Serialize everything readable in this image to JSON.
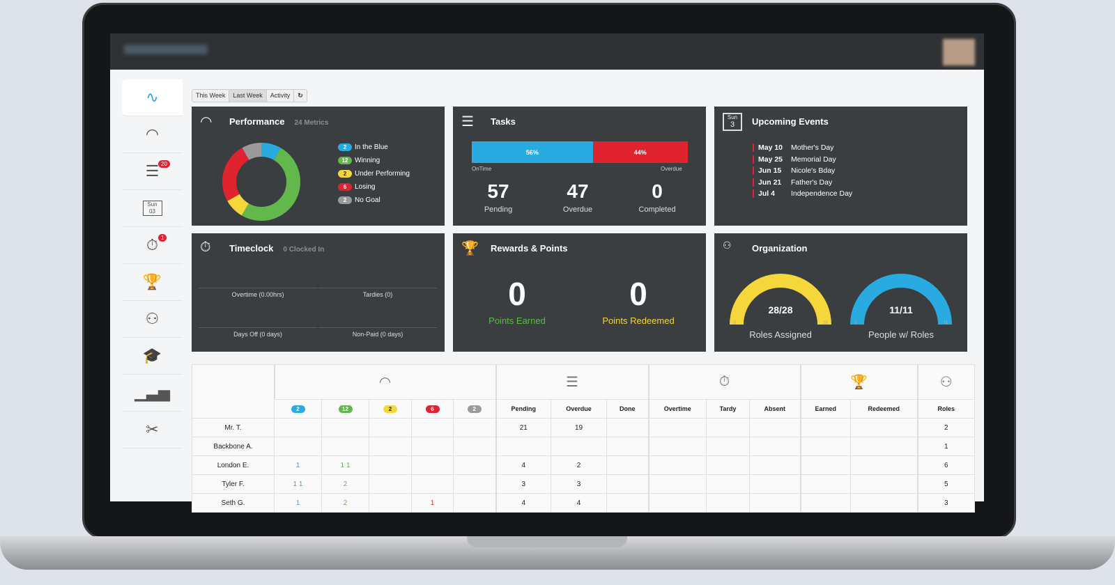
{
  "toolbar": {
    "tabs": [
      "This Week",
      "Last Week",
      "Activity"
    ],
    "active": "Last Week",
    "refresh_icon": "refresh-icon"
  },
  "sidebar": {
    "items": [
      {
        "icon": "activity-pulse-icon"
      },
      {
        "icon": "gauge-icon"
      },
      {
        "icon": "tasks-icon",
        "badge": "20"
      },
      {
        "icon": "calendar-icon",
        "label_top": "Sun",
        "label": "03"
      },
      {
        "icon": "timer-icon",
        "badge": "1"
      },
      {
        "icon": "trophy-icon"
      },
      {
        "icon": "org-chart-icon"
      },
      {
        "icon": "graduation-cap-icon"
      },
      {
        "icon": "bar-chart-icon"
      },
      {
        "icon": "tools-icon"
      }
    ]
  },
  "performance": {
    "title": "Performance",
    "subtitle": "24 Metrics",
    "chart_data": {
      "type": "pie",
      "donut": true,
      "series": [
        {
          "name": "In the Blue",
          "value": 2,
          "color": "#29abe2"
        },
        {
          "name": "Winning",
          "value": 12,
          "color": "#62b84b"
        },
        {
          "name": "Under Performing",
          "value": 2,
          "color": "#f5d63b"
        },
        {
          "name": "Losing",
          "value": 6,
          "color": "#e0242f"
        },
        {
          "name": "No Goal",
          "value": 2,
          "color": "#9a9a9a"
        }
      ]
    }
  },
  "tasks": {
    "title": "Tasks",
    "ontime_pct": 56,
    "overdue_pct": 44,
    "ontime_label": "56%",
    "overdue_label": "44%",
    "left_caption": "OnTime",
    "right_caption": "Overdue",
    "stats": [
      {
        "value": "57",
        "label": "Pending"
      },
      {
        "value": "47",
        "label": "Overdue"
      },
      {
        "value": "0",
        "label": "Completed"
      }
    ]
  },
  "events": {
    "title": "Upcoming Events",
    "icon_top": "Sun",
    "icon_day": "3",
    "items": [
      {
        "date": "May 10",
        "name": "Mother's Day"
      },
      {
        "date": "May 25",
        "name": "Memorial Day"
      },
      {
        "date": "Jun 15",
        "name": "Nicole's Bday"
      },
      {
        "date": "Jun 21",
        "name": "Father's Day"
      },
      {
        "date": "Jul 4",
        "name": "Independence Day"
      }
    ]
  },
  "timeclock": {
    "title": "Timeclock",
    "subtitle": "0 Clocked In",
    "cells": [
      "Overtime (0.00hrs)",
      "Tardies (0)",
      "Days Off (0 days)",
      "Non-Paid (0 days)"
    ]
  },
  "rewards": {
    "title": "Rewards & Points",
    "earned": "0",
    "earned_label": "Points Earned",
    "redeemed": "0",
    "redeemed_label": "Points Redeemed",
    "earned_color": "#62b84b",
    "redeemed_color": "#f5d63b"
  },
  "organization": {
    "title": "Organization",
    "gauges": [
      {
        "value": "28/28",
        "label": "Roles Assigned",
        "min": "0",
        "max": "28",
        "fill": 1.0,
        "color": "#f5d63b"
      },
      {
        "value": "11/11",
        "label": "People w/ Roles",
        "min": "0",
        "max": "11",
        "fill": 1.0,
        "color": "#29abe2"
      }
    ]
  },
  "table": {
    "perf_badges": [
      "2",
      "12",
      "2",
      "6",
      "2"
    ],
    "columns": [
      "Pending",
      "Overdue",
      "Done",
      "Overtime",
      "Tardy",
      "Absent",
      "Earned",
      "Redeemed",
      "Roles"
    ],
    "rows": [
      {
        "name": "Mr. T.",
        "perf": [
          "",
          "",
          "",
          "",
          ""
        ],
        "vals": [
          "21",
          "19",
          "",
          "",
          "",
          "",
          "",
          "",
          "2"
        ]
      },
      {
        "name": "Backbone A.",
        "perf": [
          "",
          "",
          "",
          "",
          ""
        ],
        "vals": [
          "",
          "",
          "",
          "",
          "",
          "",
          "",
          "",
          "1"
        ]
      },
      {
        "name": "London E.",
        "perf": [
          "1",
          "1 1",
          "",
          "",
          ""
        ],
        "vals": [
          "4",
          "2",
          "",
          "",
          "",
          "",
          "",
          "",
          "6"
        ]
      },
      {
        "name": "Tyler F.",
        "perf": [
          "1 1",
          "2",
          "",
          "",
          ""
        ],
        "vals": [
          "3",
          "3",
          "",
          "",
          "",
          "",
          "",
          "",
          "5"
        ]
      },
      {
        "name": "Seth G.",
        "perf": [
          "1",
          "2",
          "",
          "1",
          ""
        ],
        "vals": [
          "4",
          "4",
          "",
          "",
          "",
          "",
          "",
          "",
          "3"
        ]
      }
    ]
  }
}
